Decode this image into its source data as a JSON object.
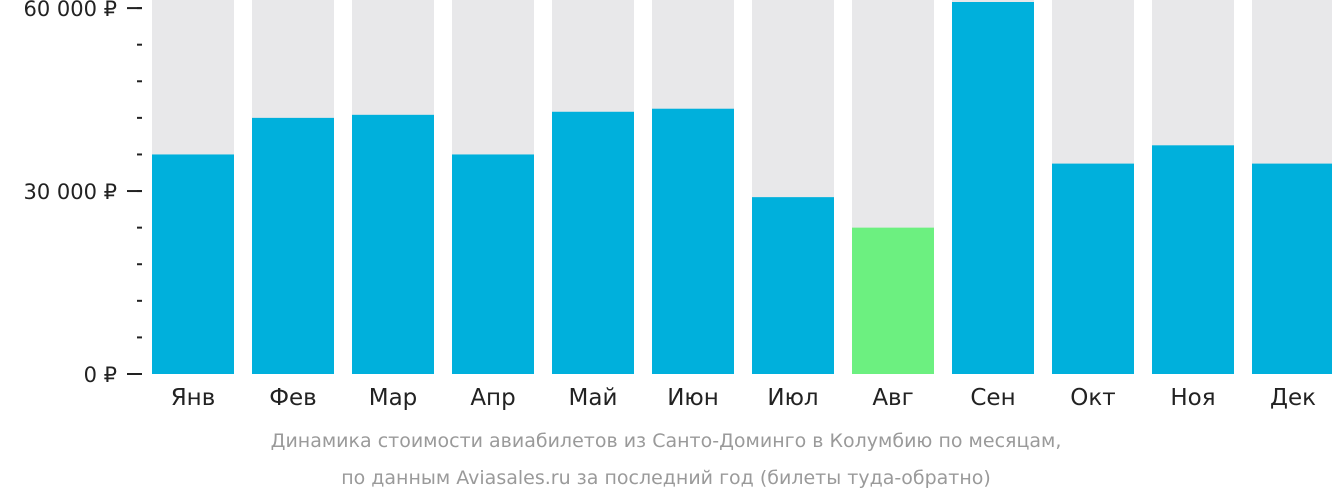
{
  "chart_data": {
    "type": "bar",
    "categories": [
      "Янв",
      "Фев",
      "Мар",
      "Апр",
      "Май",
      "Июн",
      "Июл",
      "Авг",
      "Сен",
      "Окт",
      "Ноя",
      "Дек"
    ],
    "values": [
      36000,
      42000,
      42500,
      36000,
      43000,
      43500,
      29000,
      24000,
      61000,
      34500,
      37500,
      34500
    ],
    "highlight_index": 7,
    "ylim": [
      0,
      61000
    ],
    "yticks": [
      {
        "value": 0,
        "label": "0 ₽"
      },
      {
        "value": 30000,
        "label": "30 000 ₽"
      },
      {
        "value": 60000,
        "label": "60 000 ₽"
      }
    ],
    "minor_tick_step": 6000,
    "title": "",
    "xlabel": "",
    "ylabel": "",
    "grid": false,
    "colors": {
      "bar": "#00b0dc",
      "highlight": "#6cf080",
      "background_bar": "#e8e8ea",
      "axis": "#222222"
    }
  },
  "caption": {
    "line1": "Динамика стоимости авиабилетов из Санто-Доминго в Колумбию по месяцам,",
    "line2": "по данным Aviasales.ru за последний год (билеты туда-обратно)"
  }
}
